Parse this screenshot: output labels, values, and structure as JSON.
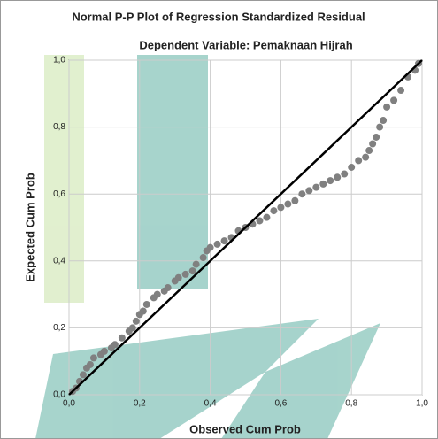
{
  "chart_data": {
    "type": "scatter",
    "title": "Normal P-P Plot of Regression Standardized Residual",
    "subtitle": "Dependent Variable: Pemaknaan Hijrah",
    "x_label": "Observed Cum Prob",
    "y_label": "Expected Cum Prob",
    "xlim": [
      0,
      1
    ],
    "ylim": [
      0,
      1
    ],
    "xticks": [
      {
        "value": 0,
        "label": "0,0"
      },
      {
        "value": 0.2,
        "label": "0,2"
      },
      {
        "value": 0.4,
        "label": "0,4"
      },
      {
        "value": 0.6,
        "label": "0,6"
      },
      {
        "value": 0.8,
        "label": "0,8"
      },
      {
        "value": 1,
        "label": "1,0"
      }
    ],
    "yticks": [
      {
        "value": 0,
        "label": "0,0"
      },
      {
        "value": 0.2,
        "label": "0,2"
      },
      {
        "value": 0.4,
        "label": "0,4"
      },
      {
        "value": 0.6,
        "label": "0,6"
      },
      {
        "value": 0.8,
        "label": "0,8"
      },
      {
        "value": 1,
        "label": "1,0"
      }
    ],
    "grid": true,
    "color": "#808080",
    "line_color": "#000000",
    "x": [
      0.01,
      0.02,
      0.03,
      0.04,
      0.05,
      0.06,
      0.07,
      0.09,
      0.1,
      0.12,
      0.13,
      0.15,
      0.17,
      0.18,
      0.19,
      0.2,
      0.21,
      0.22,
      0.24,
      0.25,
      0.27,
      0.28,
      0.3,
      0.31,
      0.33,
      0.35,
      0.36,
      0.38,
      0.39,
      0.4,
      0.42,
      0.44,
      0.46,
      0.48,
      0.5,
      0.52,
      0.54,
      0.56,
      0.58,
      0.6,
      0.62,
      0.64,
      0.66,
      0.68,
      0.7,
      0.72,
      0.74,
      0.76,
      0.78,
      0.8,
      0.82,
      0.84,
      0.85,
      0.86,
      0.87,
      0.88,
      0.89,
      0.9,
      0.92,
      0.94,
      0.96,
      0.98,
      0.99
    ],
    "y": [
      0.01,
      0.02,
      0.04,
      0.06,
      0.08,
      0.09,
      0.11,
      0.12,
      0.13,
      0.14,
      0.15,
      0.17,
      0.19,
      0.2,
      0.22,
      0.24,
      0.25,
      0.27,
      0.29,
      0.3,
      0.31,
      0.32,
      0.34,
      0.35,
      0.36,
      0.37,
      0.39,
      0.41,
      0.43,
      0.44,
      0.45,
      0.46,
      0.47,
      0.49,
      0.5,
      0.51,
      0.52,
      0.53,
      0.55,
      0.56,
      0.57,
      0.58,
      0.6,
      0.61,
      0.62,
      0.63,
      0.64,
      0.65,
      0.66,
      0.68,
      0.7,
      0.71,
      0.73,
      0.75,
      0.77,
      0.8,
      0.82,
      0.86,
      0.88,
      0.91,
      0.95,
      0.97,
      0.99
    ]
  }
}
